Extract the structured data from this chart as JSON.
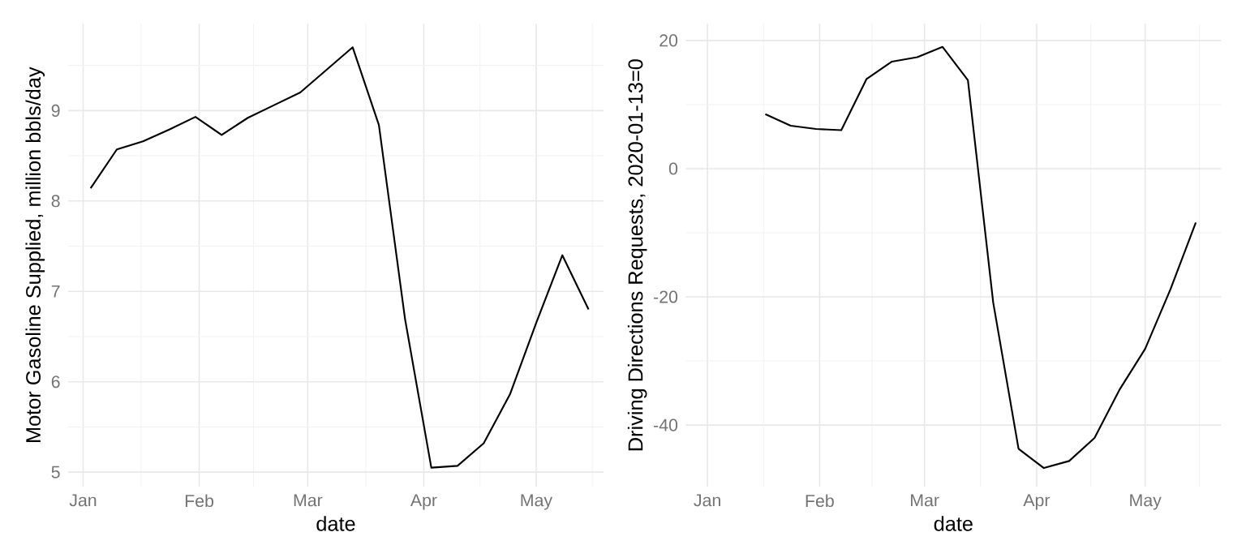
{
  "chart_data": [
    {
      "type": "line",
      "xlabel": "date",
      "ylabel": "Motor Gasoline Supplied, million bbls/day",
      "x": [
        "2020-01-03",
        "2020-01-10",
        "2020-01-17",
        "2020-01-24",
        "2020-01-31",
        "2020-02-07",
        "2020-02-14",
        "2020-02-21",
        "2020-02-28",
        "2020-03-06",
        "2020-03-13",
        "2020-03-20",
        "2020-03-27",
        "2020-04-03",
        "2020-04-10",
        "2020-04-17",
        "2020-04-24",
        "2020-05-01",
        "2020-05-08",
        "2020-05-15"
      ],
      "series": [
        {
          "color": "#000000",
          "values": [
            8.14,
            8.57,
            8.66,
            8.79,
            8.93,
            8.73,
            8.92,
            9.06,
            9.2,
            9.45,
            9.7,
            8.84,
            6.69,
            5.05,
            5.07,
            5.32,
            5.86,
            6.65,
            7.4,
            6.8
          ]
        }
      ],
      "xlim": [
        "2019-12-28",
        "2020-05-19"
      ],
      "ylim": [
        4.84,
        9.96
      ],
      "xticks": [
        {
          "value": "2020-01-01",
          "label": "Jan"
        },
        {
          "value": "2020-02-01",
          "label": "Feb"
        },
        {
          "value": "2020-03-01",
          "label": "Mar"
        },
        {
          "value": "2020-04-01",
          "label": "Apr"
        },
        {
          "value": "2020-05-01",
          "label": "May"
        }
      ],
      "yticks": [
        5,
        6,
        7,
        8,
        9
      ],
      "grid": true
    },
    {
      "type": "line",
      "xlabel": "date",
      "ylabel": "Driving Directions Requests, 2020-01-13=0",
      "x": [
        "2020-01-17",
        "2020-01-24",
        "2020-01-31",
        "2020-02-07",
        "2020-02-14",
        "2020-02-21",
        "2020-02-28",
        "2020-03-06",
        "2020-03-13",
        "2020-03-20",
        "2020-03-27",
        "2020-04-03",
        "2020-04-10",
        "2020-04-17",
        "2020-04-24",
        "2020-05-01",
        "2020-05-08",
        "2020-05-15"
      ],
      "series": [
        {
          "color": "#000000",
          "values": [
            8.5,
            6.7,
            6.2,
            6.0,
            14,
            16.7,
            17.4,
            19,
            13.8,
            -20.9,
            -43.7,
            -46.7,
            -45.6,
            -42,
            -34.4,
            -28.1,
            -18.8,
            -8.4
          ]
        }
      ],
      "xlim": [
        "2019-12-26",
        "2020-05-22"
      ],
      "ylim": [
        -49.6,
        22.6
      ],
      "xticks": [
        {
          "value": "2020-01-01",
          "label": "Jan"
        },
        {
          "value": "2020-02-01",
          "label": "Feb"
        },
        {
          "value": "2020-03-01",
          "label": "Mar"
        },
        {
          "value": "2020-04-01",
          "label": "Apr"
        },
        {
          "value": "2020-05-01",
          "label": "May"
        }
      ],
      "yticks": [
        -40,
        -20,
        0,
        20
      ],
      "grid": true
    }
  ]
}
